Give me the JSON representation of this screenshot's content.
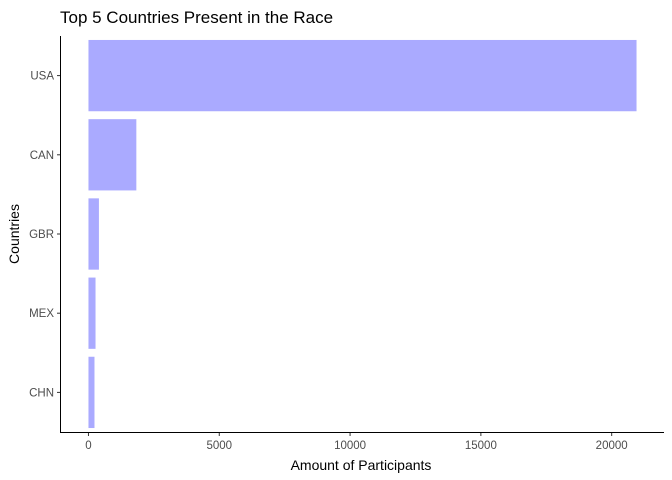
{
  "chart_data": {
    "type": "bar",
    "orientation": "horizontal",
    "title": "Top 5 Countries Present in the Race",
    "xlabel": "Amount of Participants",
    "ylabel": "Countries",
    "categories": [
      "USA",
      "CAN",
      "GBR",
      "MEX",
      "CHN"
    ],
    "values": [
      20950,
      1830,
      400,
      270,
      230
    ],
    "xlim": [
      -1050,
      22000
    ],
    "xticks": [
      0,
      5000,
      10000,
      15000,
      20000
    ],
    "xtick_labels": [
      "0",
      "5000",
      "10000",
      "15000",
      "20000"
    ],
    "bar_color": "#aaaaff",
    "grid": false,
    "legend": "none"
  }
}
